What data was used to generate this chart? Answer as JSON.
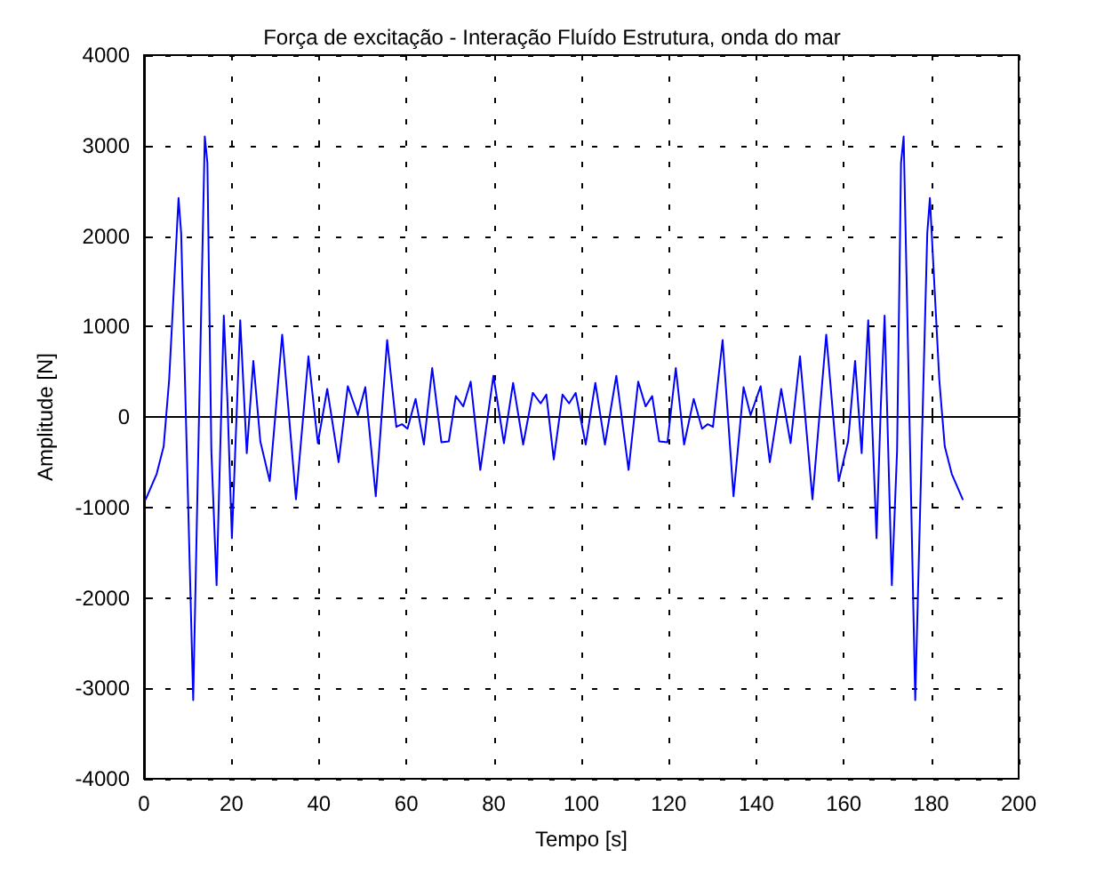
{
  "chart_data": {
    "type": "line",
    "title": "Força de excitação - Interação Fluído Estrutura, onda do mar",
    "xlabel": "Tempo [s]",
    "ylabel": "Amplitude [N]",
    "xlim": [
      0,
      200
    ],
    "xticks": [
      0,
      20,
      40,
      60,
      80,
      100,
      120,
      140,
      160,
      180,
      200
    ],
    "ylim": [
      -4000,
      4000
    ],
    "yticks": [
      -4000,
      -3000,
      -2000,
      -1000,
      0,
      1000,
      2000,
      3000,
      4000
    ],
    "grid": true,
    "line_style": "solid",
    "series": [
      {
        "color": "#0000ff",
        "x": [
          0.4,
          2.9,
          4.5,
          5.75,
          7.9,
          8.5,
          11.25,
          13.25,
          13.9,
          14.5,
          15.4,
          16.6,
          18.25,
          19.1,
          20.1,
          22,
          23.5,
          25,
          26.6,
          28.75,
          31.6,
          34.75,
          37.6,
          39.75,
          41.9,
          44.5,
          46.6,
          48.9,
          50.6,
          53,
          55.6,
          57.7,
          59,
          60.25,
          62.1,
          64,
          65.9,
          68,
          69.7,
          71.3,
          73,
          74.7,
          76.9,
          79.9,
          82.3,
          84.4,
          86.7,
          88.9,
          90.7,
          92,
          93.7,
          95.7,
          97.2,
          98.7,
          101,
          103.2,
          105.4,
          108,
          110.8,
          113,
          114.7,
          116.2,
          117.8,
          119.7,
          121.6,
          123.5,
          125.7,
          127.6,
          128.9,
          130.1,
          132.3,
          134.8,
          137.1,
          138.7,
          141,
          143.1,
          145.7,
          147.85,
          150,
          152.85,
          156,
          158.85,
          161,
          162.6,
          164.1,
          165.6,
          167.5,
          168.5,
          169.35,
          171,
          172.2,
          173.1,
          173.7,
          174.35,
          176.35,
          179.1,
          179.7,
          181.85,
          183.1,
          184.7,
          187.2
        ],
        "values": [
          -910,
          -630,
          -325,
          410,
          2420,
          2030,
          -3130,
          1580,
          3100,
          2810,
          -370,
          -1860,
          1120,
          150,
          -1340,
          1070,
          -400,
          620,
          -270,
          -710,
          910,
          -910,
          670,
          -290,
          310,
          -500,
          340,
          20,
          330,
          -877,
          850,
          -110,
          -80,
          -130,
          200,
          -305,
          540,
          -280,
          -270,
          230,
          117,
          390,
          -585,
          455,
          -290,
          377,
          -305,
          266,
          150,
          247,
          -470,
          247,
          150,
          266,
          -305,
          377,
          -305,
          455,
          -585,
          390,
          117,
          230,
          -270,
          -280,
          540,
          -305,
          200,
          -130,
          -80,
          -110,
          850,
          -877,
          330,
          20,
          340,
          -500,
          310,
          -290,
          670,
          -910,
          910,
          -710,
          -270,
          620,
          -400,
          1070,
          -1340,
          150,
          1120,
          -1860,
          -370,
          2810,
          3100,
          1580,
          -3130,
          2030,
          2420,
          410,
          -325,
          -630,
          -910
        ]
      }
    ]
  }
}
